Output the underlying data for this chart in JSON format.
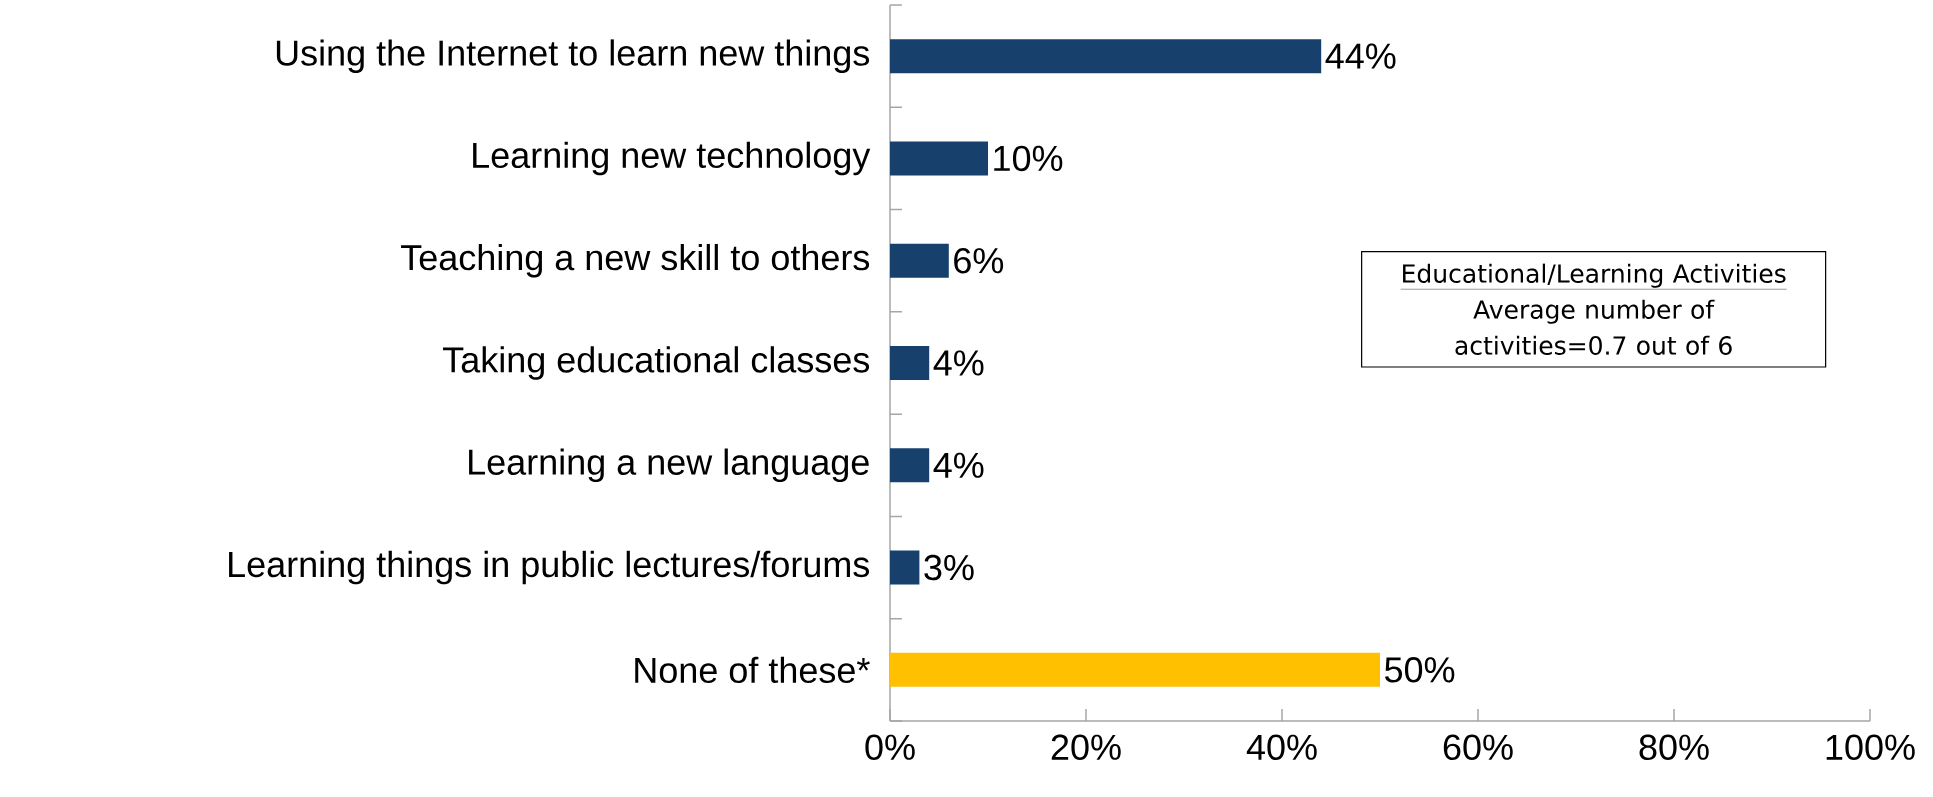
{
  "chart_data": {
    "type": "bar",
    "orientation": "horizontal",
    "categories": [
      "Using the Internet to learn new things",
      "Learning new technology",
      "Teaching a new skill to others",
      "Taking educational classes",
      "Learning a new language",
      "Learning things in public lectures/forums",
      "None of these*"
    ],
    "values": [
      44,
      10,
      6,
      4,
      4,
      3,
      50
    ],
    "colors": [
      "#17406d",
      "#17406d",
      "#17406d",
      "#17406d",
      "#17406d",
      "#17406d",
      "#ffc000"
    ],
    "value_labels": [
      "44%",
      "10%",
      "6%",
      "4%",
      "4%",
      "3%",
      "50%"
    ],
    "xlim": [
      0,
      100
    ],
    "xticks": [
      {
        "value": 0,
        "label": "0%"
      },
      {
        "value": 20,
        "label": "20%"
      },
      {
        "value": 40,
        "label": "40%"
      },
      {
        "value": 60,
        "label": "60%"
      },
      {
        "value": 80,
        "label": "80%"
      },
      {
        "value": 100,
        "label": "100%"
      }
    ],
    "annotations": [
      "Educational/Learning  Activities",
      "Average number of activities=0.7 out of 6"
    ]
  }
}
